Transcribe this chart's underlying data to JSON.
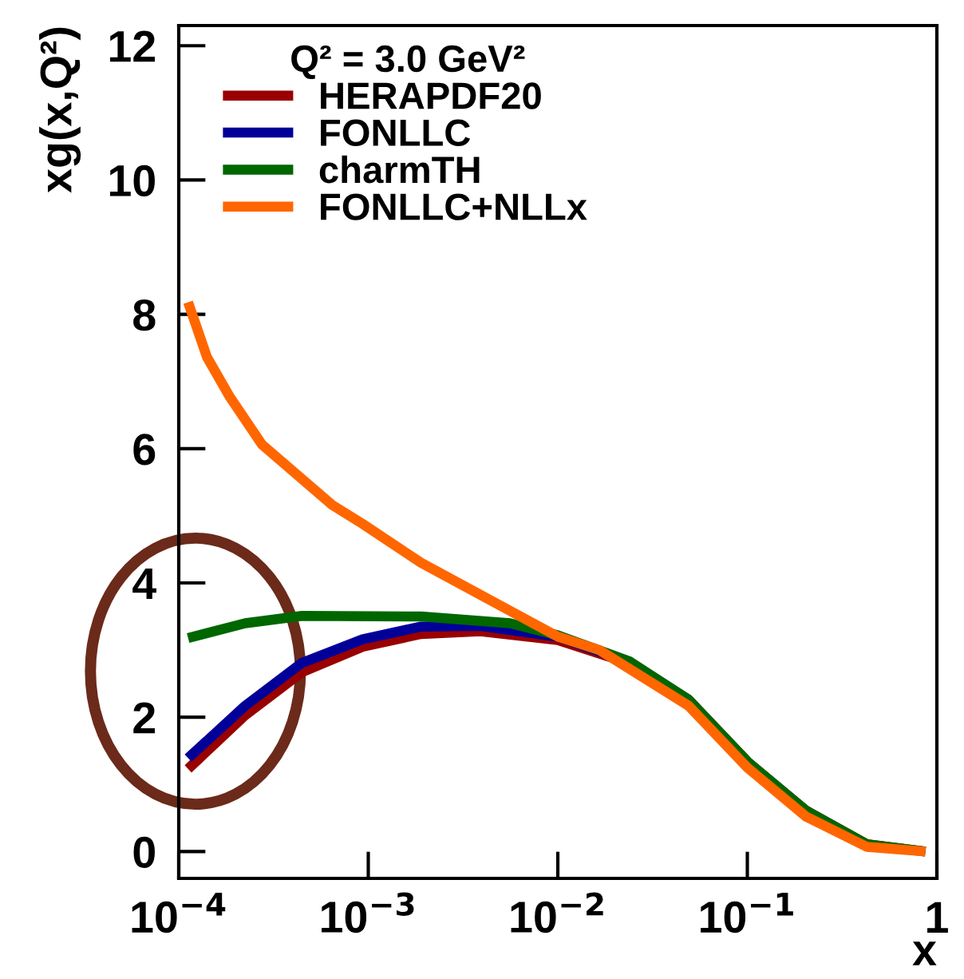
{
  "chart_data": {
    "type": "line",
    "xlabel": "x",
    "ylabel": "xg(x,Q²)",
    "legend_title": "Q² = 3.0 GeV²",
    "legend": "top left",
    "log": "x",
    "grid": false,
    "marker": "none",
    "line_style": "solid",
    "xlim": [
      0.0001,
      1
    ],
    "xticks": [
      {
        "value": 0.0001,
        "label": "10$^{−4}$"
      },
      {
        "value": 0.001,
        "label": "10$^{−3}$"
      },
      {
        "value": 0.01,
        "label": "10$^{−2}$"
      },
      {
        "value": 0.1,
        "label": "10$^{−1}$"
      },
      1
    ],
    "ylim": [
      -0.4,
      12.3
    ],
    "yticks": [
      0,
      2,
      4,
      6,
      8,
      10,
      12
    ],
    "series": [
      {
        "name": "HERAPDF20",
        "color": "#990000",
        "x": [
          0.000112,
          0.000224,
          0.000447,
          0.000933,
          0.0019,
          0.0039,
          0.01,
          0.024,
          0.049,
          0.1,
          0.204,
          0.427,
          0.87
        ],
        "values": [
          1.23,
          2.03,
          2.67,
          3.05,
          3.24,
          3.28,
          3.15,
          2.8,
          2.26,
          1.34,
          0.61,
          0.11,
          0
        ]
      },
      {
        "name": "FONLLC",
        "color": "#000099",
        "x": [
          0.000112,
          0.000224,
          0.000447,
          0.000933,
          0.0019,
          0.0039,
          0.01,
          0.024,
          0.049
        ],
        "values": [
          1.39,
          2.17,
          2.81,
          3.16,
          3.35,
          3.36,
          3.2,
          2.82,
          2.26
        ]
      },
      {
        "name": "charmTH",
        "color": "#006600",
        "x": [
          0.000112,
          0.000224,
          0.000447,
          0.0019,
          0.0056,
          0.01,
          0.024,
          0.049,
          0.1,
          0.204,
          0.427,
          0.87
        ],
        "values": [
          3.18,
          3.4,
          3.51,
          3.5,
          3.4,
          3.22,
          2.83,
          2.26,
          1.34,
          0.61,
          0.11,
          0
        ]
      },
      {
        "name": "FONLLC+NLLx",
        "color": "#ff6600",
        "x": [
          0.000112,
          0.000141,
          0.000186,
          0.000275,
          0.000646,
          0.000933,
          0.0019,
          0.01,
          0.0166,
          0.049,
          0.1,
          0.204,
          0.427,
          0.87
        ],
        "values": [
          8.18,
          7.36,
          6.77,
          6.06,
          5.16,
          4.88,
          4.3,
          3.2,
          3.0,
          2.17,
          1.25,
          0.52,
          0.07,
          0
        ]
      }
    ]
  }
}
